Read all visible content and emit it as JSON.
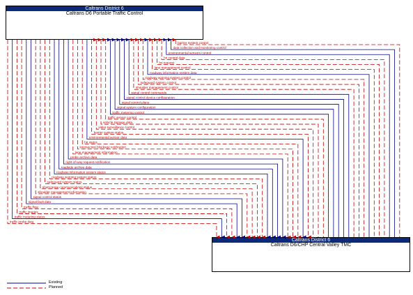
{
  "top_element": {
    "agency": "Caltrans District 6",
    "name": "Caltrans D6 Portable Traffic Control"
  },
  "bottom_element": {
    "agency": "Caltrans District 6",
    "name": "Caltrans D6/CHP Central Valley TMC"
  },
  "flows": [
    {
      "label": "barrier system control",
      "status": "planned",
      "direction": "up"
    },
    {
      "label": "data collection and monitoring control",
      "status": "existing",
      "direction": "up"
    },
    {
      "label": "environmental sensors control",
      "status": "existing",
      "direction": "up"
    },
    {
      "label": "hri control data",
      "status": "planned",
      "direction": "up"
    },
    {
      "label": "hri request",
      "status": "planned",
      "direction": "up"
    },
    {
      "label": "lane management control",
      "status": "planned",
      "direction": "up"
    },
    {
      "label": "roadway information system data",
      "status": "existing",
      "direction": "up"
    },
    {
      "label": "roadway warning system control",
      "status": "planned",
      "direction": "up"
    },
    {
      "label": "safeguard system control",
      "status": "planned",
      "direction": "up"
    },
    {
      "label": "shoulder management control",
      "status": "planned",
      "direction": "up"
    },
    {
      "label": "signal control commands",
      "status": "existing",
      "direction": "up"
    },
    {
      "label": "signal control device configuration",
      "status": "existing",
      "direction": "up"
    },
    {
      "label": "signal control plans",
      "status": "existing",
      "direction": "up"
    },
    {
      "label": "signal system configuration",
      "status": "existing",
      "direction": "up"
    },
    {
      "label": "traffic metering control",
      "status": "existing",
      "direction": "up"
    },
    {
      "label": "traffic sensor control",
      "status": "planned",
      "direction": "up"
    },
    {
      "label": "vehicle signage data",
      "status": "planned",
      "direction": "up"
    },
    {
      "label": "video surveillance control",
      "status": "planned",
      "direction": "up"
    },
    {
      "label": "barrier system status",
      "status": "planned",
      "direction": "down"
    },
    {
      "label": "environmental sensor data",
      "status": "existing",
      "direction": "down"
    },
    {
      "label": "hri status",
      "status": "planned",
      "direction": "down"
    },
    {
      "label": "intersection blockage notification",
      "status": "planned",
      "direction": "down"
    },
    {
      "label": "lane management information",
      "status": "planned",
      "direction": "down"
    },
    {
      "label": "probe archive data",
      "status": "existing",
      "direction": "down"
    },
    {
      "label": "right-of-way request notification",
      "status": "existing",
      "direction": "down"
    },
    {
      "label": "roadside archive data",
      "status": "existing",
      "direction": "down"
    },
    {
      "label": "roadway information system status",
      "status": "existing",
      "direction": "down"
    },
    {
      "label": "roadway warning system status",
      "status": "planned",
      "direction": "down"
    },
    {
      "label": "safeguard system status",
      "status": "planned",
      "direction": "down"
    },
    {
      "label": "short range communications status",
      "status": "planned",
      "direction": "down"
    },
    {
      "label": "shoulder management information",
      "status": "planned",
      "direction": "down"
    },
    {
      "label": "signal control status",
      "status": "existing",
      "direction": "down"
    },
    {
      "label": "signal fault data",
      "status": "existing",
      "direction": "down"
    },
    {
      "label": "traffic flow",
      "status": "planned",
      "direction": "down"
    },
    {
      "label": "traffic images",
      "status": "planned",
      "direction": "down"
    },
    {
      "label": "traffic metering status",
      "status": "existing",
      "direction": "down"
    },
    {
      "label": "traffic probe data",
      "status": "planned",
      "direction": "down"
    }
  ],
  "legend": [
    {
      "label": "Existing",
      "status": "existing"
    },
    {
      "label": "Planned",
      "status": "planned"
    }
  ],
  "colors": {
    "existing": "#00008b",
    "planned": "#c00000",
    "header": "#0b2a7a"
  }
}
